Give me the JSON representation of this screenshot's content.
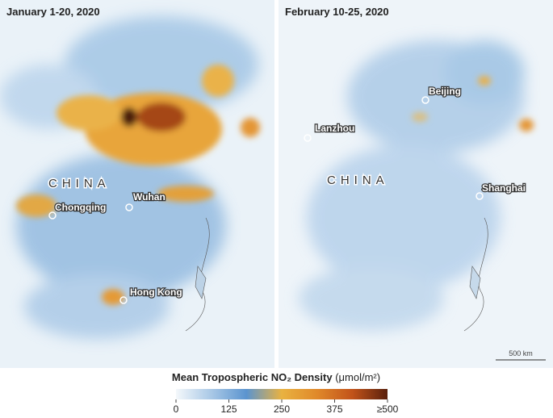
{
  "panels": [
    {
      "title": "January 1-20, 2020",
      "country": "CHINA",
      "places": [
        "Chongqing",
        "Wuhan",
        "Hong Kong"
      ]
    },
    {
      "title": "February 10-25, 2020",
      "country": "CHINA",
      "places": [
        "Beijing",
        "Lanzhou",
        "Shanghai"
      ],
      "scale": "500 km"
    }
  ],
  "legend": {
    "title": "Mean Tropospheric NO₂ Density",
    "unit": "(μmol/m²)",
    "range": [
      0,
      500
    ],
    "ticks": [
      0,
      125,
      250,
      375,
      {
        "value": 500,
        "label": "≥500"
      }
    ],
    "colors": [
      "#f4f8fb",
      "#a9c8e6",
      "#5b94cf",
      "#e9b241",
      "#e0892a",
      "#c2531a",
      "#5a200c"
    ]
  }
}
